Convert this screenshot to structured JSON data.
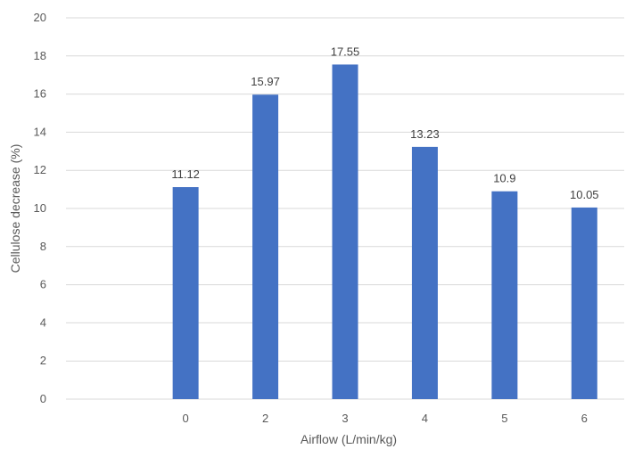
{
  "chart_data": {
    "type": "bar",
    "categories": [
      "",
      "0",
      "2",
      "3",
      "4",
      "5",
      "6"
    ],
    "values": [
      null,
      11.12,
      15.97,
      17.55,
      13.23,
      10.9,
      10.05
    ],
    "data_labels": [
      "",
      "11.12",
      "15.97",
      "17.55",
      "13.23",
      "10.9",
      "10.05"
    ],
    "xlabel": "Airflow (L/min/kg)",
    "ylabel": "Cellulose decrease (%)",
    "ylim": [
      0,
      20
    ],
    "yticks": [
      "0",
      "2",
      "4",
      "6",
      "8",
      "10",
      "12",
      "14",
      "16",
      "18",
      "20"
    ],
    "grid": true,
    "bar_color": "#4472c4"
  }
}
